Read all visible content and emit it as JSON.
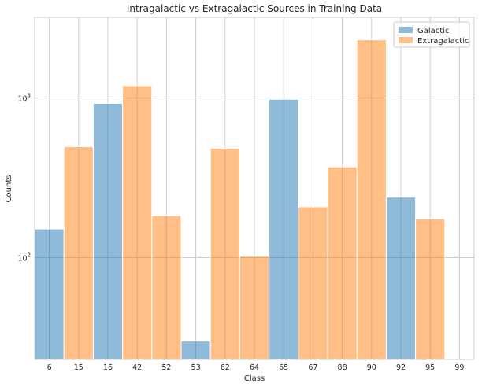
{
  "chart_data": {
    "type": "bar",
    "title": "Intragalactic vs Extragalactic Sources in Training Data",
    "xlabel": "Class",
    "ylabel": "Counts",
    "yscale": "log",
    "ylim": [
      23,
      3200
    ],
    "y_ticks": [
      {
        "value": 100,
        "base": "10",
        "exp": "2"
      },
      {
        "value": 1000,
        "base": "10",
        "exp": "3"
      }
    ],
    "grid": true,
    "legend_position": "top-right",
    "categories": [
      "6",
      "15",
      "16",
      "42",
      "52",
      "53",
      "62",
      "64",
      "65",
      "67",
      "88",
      "90",
      "92",
      "95",
      "99"
    ],
    "series": [
      {
        "name": "Galactic",
        "color": "#1f77b4",
        "values": [
          151,
          null,
          924,
          null,
          null,
          30,
          null,
          null,
          981,
          null,
          null,
          null,
          239,
          null,
          null
        ]
      },
      {
        "name": "Extragalactic",
        "color": "#ff7f0e",
        "values": [
          null,
          495,
          null,
          1193,
          183,
          null,
          484,
          102,
          null,
          208,
          370,
          2313,
          null,
          175,
          null
        ]
      }
    ]
  }
}
